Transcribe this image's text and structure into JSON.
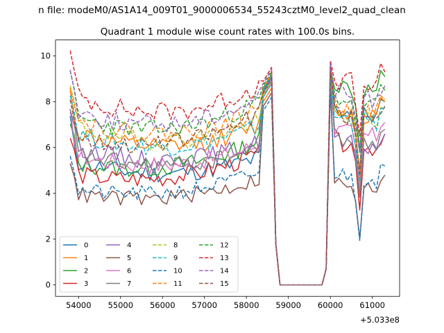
{
  "chart_data": {
    "type": "line",
    "suptitle": "n file: modeM0/AS1A14_009T01_9000006534_55243cztM0_level2_quad_clean",
    "title": "Quadrant 1 module wise count rates with 100.0s bins.",
    "xlabel": "",
    "ylabel": "",
    "offset_label": "+5.033e8",
    "x_offset": 503300000,
    "xlim": [
      53450,
      61650
    ],
    "ylim": [
      -0.5,
      10.7
    ],
    "x_ticks": [
      54000,
      55000,
      56000,
      57000,
      58000,
      59000,
      60000,
      61000
    ],
    "y_ticks": [
      0,
      2,
      4,
      6,
      8,
      10
    ],
    "grid": false,
    "legend_loc": "lower left",
    "legend_ncol": 4,
    "x_range": {
      "start": 53800,
      "step": 100
    },
    "series": [
      {
        "name": "0",
        "color": "#1f77b4",
        "dash": "solid",
        "base": 5.6,
        "end": 5.6,
        "amp": 0.4,
        "last": 1.8,
        "spike": 9.1,
        "post": 7.7,
        "seed": 11
      },
      {
        "name": "1",
        "color": "#ff7f0e",
        "dash": "solid",
        "base": 6.9,
        "end": 7.0,
        "amp": 0.4,
        "last": 2.3,
        "spike": 8.6,
        "post": 7.7,
        "seed": 12
      },
      {
        "name": "2",
        "color": "#2ca02c",
        "dash": "solid",
        "base": 5.5,
        "end": 6.4,
        "amp": 0.4,
        "last": 2.0,
        "spike": 9.2,
        "post": 8.8,
        "seed": 13
      },
      {
        "name": "3",
        "color": "#d62728",
        "dash": "solid",
        "base": 5.0,
        "end": 5.8,
        "amp": 0.4,
        "last": 1.8,
        "spike": 8.8,
        "post": 6.3,
        "seed": 14
      },
      {
        "name": "4",
        "color": "#9467bd",
        "dash": "solid",
        "base": 6.3,
        "end": 6.3,
        "amp": 0.4,
        "last": 1.9,
        "spike": 9.0,
        "post": 6.3,
        "seed": 15
      },
      {
        "name": "5",
        "color": "#8c564b",
        "dash": "solid",
        "base": 4.1,
        "end": 4.7,
        "amp": 0.35,
        "last": 1.6,
        "spike": 8.4,
        "post": 4.5,
        "seed": 16
      },
      {
        "name": "6",
        "color": "#e377c2",
        "dash": "solid",
        "base": 5.9,
        "end": 6.2,
        "amp": 0.4,
        "last": 1.9,
        "spike": 8.8,
        "post": 6.8,
        "seed": 17
      },
      {
        "name": "7",
        "color": "#7f7f7f",
        "dash": "solid",
        "base": 6.0,
        "end": 6.0,
        "amp": 0.4,
        "last": 1.9,
        "spike": 8.9,
        "post": 6.5,
        "seed": 18
      },
      {
        "name": "8",
        "color": "#bcbd22",
        "dash": "dashed",
        "base": 7.2,
        "end": 7.3,
        "amp": 0.4,
        "last": 2.3,
        "spike": 8.9,
        "post": 7.5,
        "seed": 19
      },
      {
        "name": "9",
        "color": "#17becf",
        "dash": "dashed",
        "base": 6.9,
        "end": 7.0,
        "amp": 0.4,
        "last": 2.2,
        "spike": 8.8,
        "post": 7.4,
        "seed": 20
      },
      {
        "name": "10",
        "color": "#1f77b4",
        "dash": "dashed",
        "base": 4.3,
        "end": 5.0,
        "amp": 0.35,
        "last": 1.7,
        "spike": 8.2,
        "post": 4.9,
        "seed": 21
      },
      {
        "name": "11",
        "color": "#ff7f0e",
        "dash": "dashed",
        "base": 7.5,
        "end": 7.7,
        "amp": 0.4,
        "last": 2.4,
        "spike": 9.2,
        "post": 7.8,
        "seed": 22
      },
      {
        "name": "12",
        "color": "#2ca02c",
        "dash": "dashed",
        "base": 7.6,
        "end": 8.1,
        "amp": 0.4,
        "last": 2.1,
        "spike": 9.3,
        "post": 8.2,
        "seed": 23
      },
      {
        "name": "13",
        "color": "#d62728",
        "dash": "dashed",
        "base": 8.6,
        "end": 8.8,
        "amp": 0.45,
        "last": 2.6,
        "spike": 9.5,
        "post": 9.0,
        "seed": 24
      },
      {
        "name": "14",
        "color": "#9467bd",
        "dash": "dashed",
        "base": 7.9,
        "end": 8.3,
        "amp": 0.4,
        "last": 2.2,
        "spike": 9.4,
        "post": 8.4,
        "seed": 25
      },
      {
        "name": "15",
        "color": "#8c564b",
        "dash": "dashed",
        "base": 6.7,
        "end": 7.6,
        "amp": 0.4,
        "last": 2.0,
        "spike": 9.0,
        "post": 7.5,
        "seed": 26
      }
    ]
  }
}
